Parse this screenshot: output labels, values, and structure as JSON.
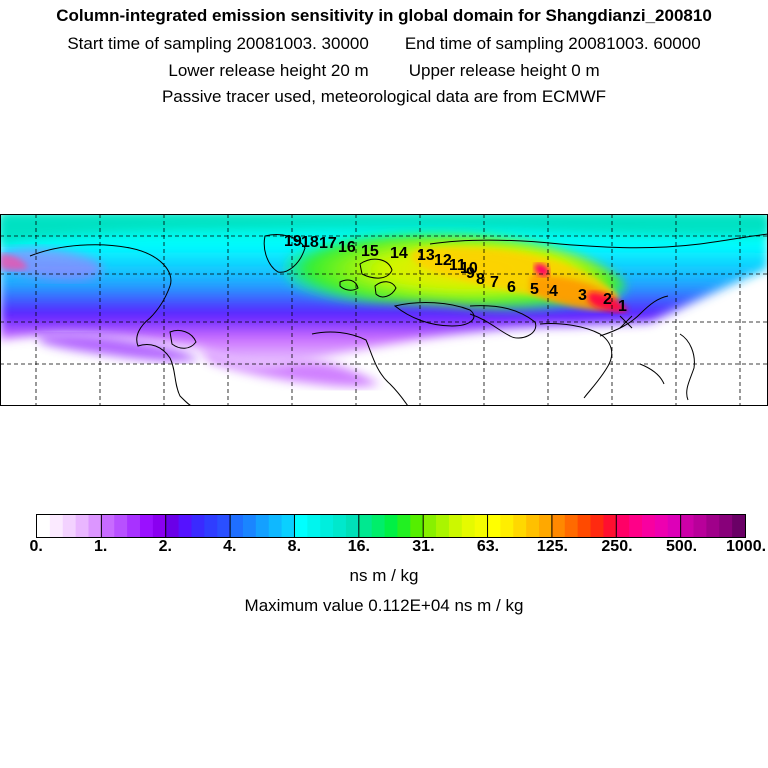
{
  "header": {
    "title": "Column-integrated emission sensitivity in global domain for Shangdianzi_200810",
    "start_label": "Start time of sampling 20081003. 30000",
    "end_label": "End time of sampling 20081003. 60000",
    "lower_label": "Lower release height   20 m",
    "upper_label": "Upper release height    0 m",
    "note": "Passive tracer used, meteorological data are from ECMWF"
  },
  "map": {
    "trajectory_labels": [
      "1",
      "2",
      "3",
      "4",
      "5",
      "6",
      "7",
      "8",
      "9",
      "10",
      "11",
      "12",
      "13",
      "14",
      "15",
      "16",
      "17",
      "18",
      "19"
    ],
    "colors": {
      "background": "#ffffff",
      "coast": "#000000",
      "low": "#c86bff",
      "mid": "#00ffdd",
      "high": "#ffdd00",
      "peak": "#ff0066"
    }
  },
  "colorbar": {
    "ticks": [
      "0.",
      "1.",
      "2.",
      "4.",
      "8.",
      "16.",
      "31.",
      "63.",
      "125.",
      "250.",
      "500.",
      "1000."
    ],
    "colors": [
      "#ffffff",
      "#fbeaff",
      "#f3d2ff",
      "#e9b6ff",
      "#dc96ff",
      "#c86bff",
      "#b850ff",
      "#a832ff",
      "#9a10ff",
      "#8a00f0",
      "#6a00e8",
      "#5512ff",
      "#3a2aff",
      "#2f3dff",
      "#2a4fff",
      "#1f6fff",
      "#1a85ff",
      "#14a0ff",
      "#0fb8ff",
      "#0ad0ff",
      "#00ffff",
      "#00f5ee",
      "#00eedd",
      "#00e8cc",
      "#00e0b8",
      "#00e890",
      "#00ee6a",
      "#00f045",
      "#22f022",
      "#55ee00",
      "#88f000",
      "#aaf500",
      "#ccf800",
      "#e5fa00",
      "#f5fc00",
      "#ffff00",
      "#ffee00",
      "#ffd800",
      "#ffc000",
      "#ffa800",
      "#ff8800",
      "#ff6a00",
      "#ff4a00",
      "#ff2a10",
      "#ff0f30",
      "#ff0066",
      "#ff0088",
      "#f800a0",
      "#ee00b0",
      "#dd00b8",
      "#cc00a8",
      "#b8009a",
      "#a0008a",
      "#88007a",
      "#6a0066"
    ],
    "unit": "ns m / kg",
    "max_value_text": "Maximum value  0.112E+04 ns m / kg"
  }
}
